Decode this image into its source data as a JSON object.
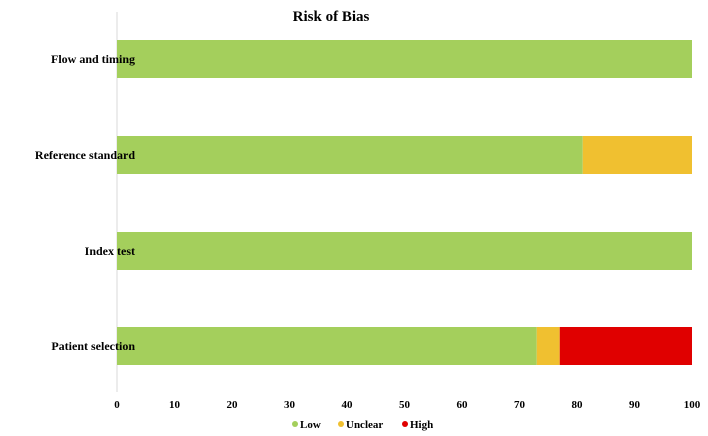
{
  "chart_data": {
    "type": "bar",
    "orientation": "horizontal",
    "stacked": true,
    "title": "Risk of Bias",
    "xlabel": "",
    "ylabel": "",
    "categories": [
      "Flow and timing",
      "Reference standard",
      "Index test",
      "Patient selection"
    ],
    "series": [
      {
        "name": "Low",
        "color": "#a4cf5c",
        "values": [
          100,
          81,
          100,
          73
        ]
      },
      {
        "name": "Unclear",
        "color": "#f0c030",
        "values": [
          0,
          19,
          0,
          4
        ]
      },
      {
        "name": "High",
        "color": "#e00000",
        "values": [
          0,
          0,
          0,
          23
        ]
      }
    ],
    "xlim": [
      0,
      100
    ],
    "xticks": [
      "0",
      "10",
      "20",
      "30",
      "40",
      "50",
      "60",
      "70",
      "80",
      "90",
      "100"
    ],
    "grid": false,
    "legend_position": "bottom"
  }
}
